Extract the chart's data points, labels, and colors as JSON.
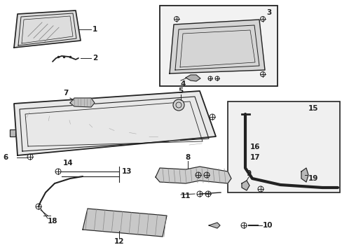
{
  "background_color": "#ffffff",
  "line_color": "#222222",
  "box_fill": "#f0f0f0",
  "gray_fill": "#cccccc",
  "light_gray": "#e8e8e8",
  "hatching_color": "#999999",
  "part1_label": "1",
  "part2_label": "2",
  "part3_label": "3",
  "part4_label": "4",
  "part5_label": "5",
  "part6_label": "6",
  "part7_label": "7",
  "part8_label": "8",
  "part9_label": "9",
  "part10_label": "10",
  "part11_label": "11",
  "part12_label": "12",
  "part13_label": "13",
  "part14_label": "14",
  "part15_label": "15",
  "part16_label": "16",
  "part17_label": "17",
  "part18_label": "18",
  "part19_label": "19"
}
